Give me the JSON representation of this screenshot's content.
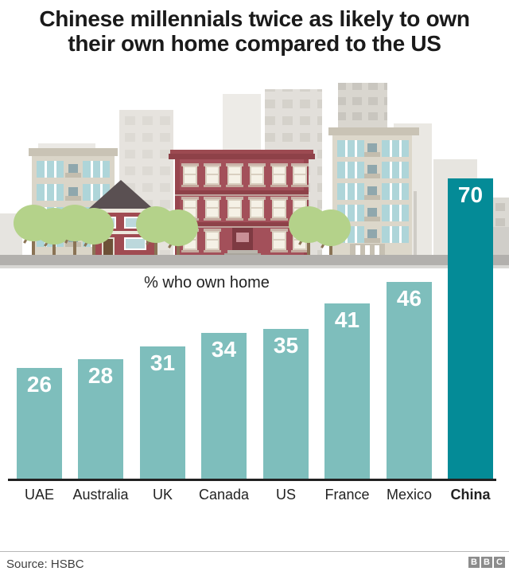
{
  "title": "Chinese millennials twice as likely to own their own home compared to the US",
  "subtitle": "% who own home",
  "source": "Source: HSBC",
  "logo_letters": [
    "B",
    "B",
    "C"
  ],
  "colors": {
    "bar": "#7ebebc",
    "highlight_bar": "#048b97",
    "value_label": "#ffffff",
    "axis": "#222222"
  },
  "chart_data": {
    "type": "bar",
    "title": "Chinese millennials twice as likely to own their own home compared to the US",
    "subtitle": "% who own home",
    "categories": [
      "UAE",
      "Australia",
      "UK",
      "Canada",
      "US",
      "France",
      "Mexico",
      "China"
    ],
    "values": [
      26,
      28,
      31,
      34,
      35,
      41,
      46,
      70
    ],
    "highlight_category": "China",
    "xlabel": "",
    "ylabel": "% who own home",
    "ylim": [
      0,
      75
    ],
    "grid": false,
    "legend": false,
    "data_labels_position": "inside top, white bold",
    "source": "HSBC"
  }
}
